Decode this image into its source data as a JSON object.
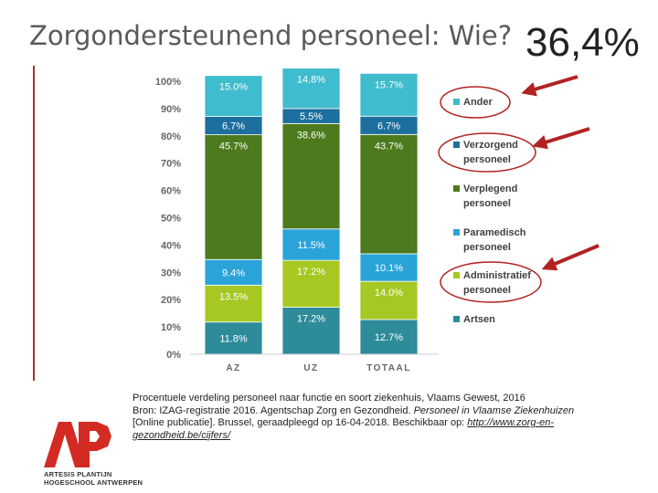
{
  "slide": {
    "title": "Zorgondersteunend personeel: Wie?",
    "highlight_value": "36,4%"
  },
  "chart_data": {
    "type": "bar",
    "stacked": true,
    "percent": true,
    "categories": [
      "AZ",
      "UZ",
      "TOTAAL"
    ],
    "ylim": [
      0,
      100
    ],
    "yticks": [
      "0%",
      "10%",
      "20%",
      "30%",
      "40%",
      "50%",
      "60%",
      "70%",
      "80%",
      "90%",
      "100%"
    ],
    "series": [
      {
        "name": "Artsen",
        "color": "#2e8b9a",
        "values": [
          11.8,
          17.2,
          12.7
        ],
        "labels": [
          "11.8%",
          "17.2%",
          "12.7%"
        ]
      },
      {
        "name": "Administratief personeel",
        "color": "#a6c822",
        "values": [
          13.5,
          17.2,
          14.0
        ],
        "labels": [
          "13.5%",
          "17.2%",
          "14.0%"
        ]
      },
      {
        "name": "Paramedisch personeel",
        "color": "#2aa3d9",
        "values": [
          9.4,
          11.5,
          10.1
        ],
        "labels": [
          "9.4%",
          "11.5%",
          "10.1%"
        ]
      },
      {
        "name": "Verplegend personeel",
        "color": "#4e7a1e",
        "values": [
          45.7,
          38.6,
          43.7
        ],
        "labels": [
          "45.7%",
          "38.6%",
          "43.7%"
        ]
      },
      {
        "name": "Verzorgend personeel",
        "color": "#1c6f9e",
        "values": [
          6.7,
          5.5,
          6.7
        ],
        "labels": [
          "6.7%",
          "5.5%",
          "6.7%"
        ]
      },
      {
        "name": "Ander",
        "color": "#3fbccd",
        "values": [
          15.0,
          14.8,
          15.7
        ],
        "labels": [
          "15.0%",
          "14.8%",
          "15.7%"
        ]
      }
    ],
    "legend": {
      "placement": "right",
      "items": [
        {
          "label": "Ander",
          "color": "#3fbccd",
          "highlighted": true
        },
        {
          "label": "Verzorgend personeel",
          "color": "#1c6f9e",
          "highlighted": true
        },
        {
          "label": "Verplegend personeel",
          "color": "#4e7a1e",
          "highlighted": false
        },
        {
          "label": "Paramedisch personeel",
          "color": "#2aa3d9",
          "highlighted": false
        },
        {
          "label": "Administratief personeel",
          "color": "#a6c822",
          "highlighted": true
        },
        {
          "label": "Artsen",
          "color": "#2e8b9a",
          "highlighted": false
        }
      ]
    },
    "annotation_color": "#b22222"
  },
  "caption": {
    "line1": "Procentuele verdeling personeel naar functie en soort ziekenhuis, Vlaams Gewest, 2016",
    "line2_plain": "Bron: IZAG-registratie 2016. Agentschap Zorg en Gezondheid. ",
    "line2_italic": "Personeel in Vlaamse Ziekenhuizen",
    "line3": "[Online publicatie]. Brussel, geraadpleegd op 16-04-2018. Beschikbaar op: ",
    "link": "http://www.zorg-en-gezondheid.be/cijfers/"
  },
  "logo": {
    "letters": "AP",
    "line1": "ARTESIS PLANTIJN",
    "line2": "HOGESCHOOL ANTWERPEN",
    "color": "#d42a24"
  }
}
